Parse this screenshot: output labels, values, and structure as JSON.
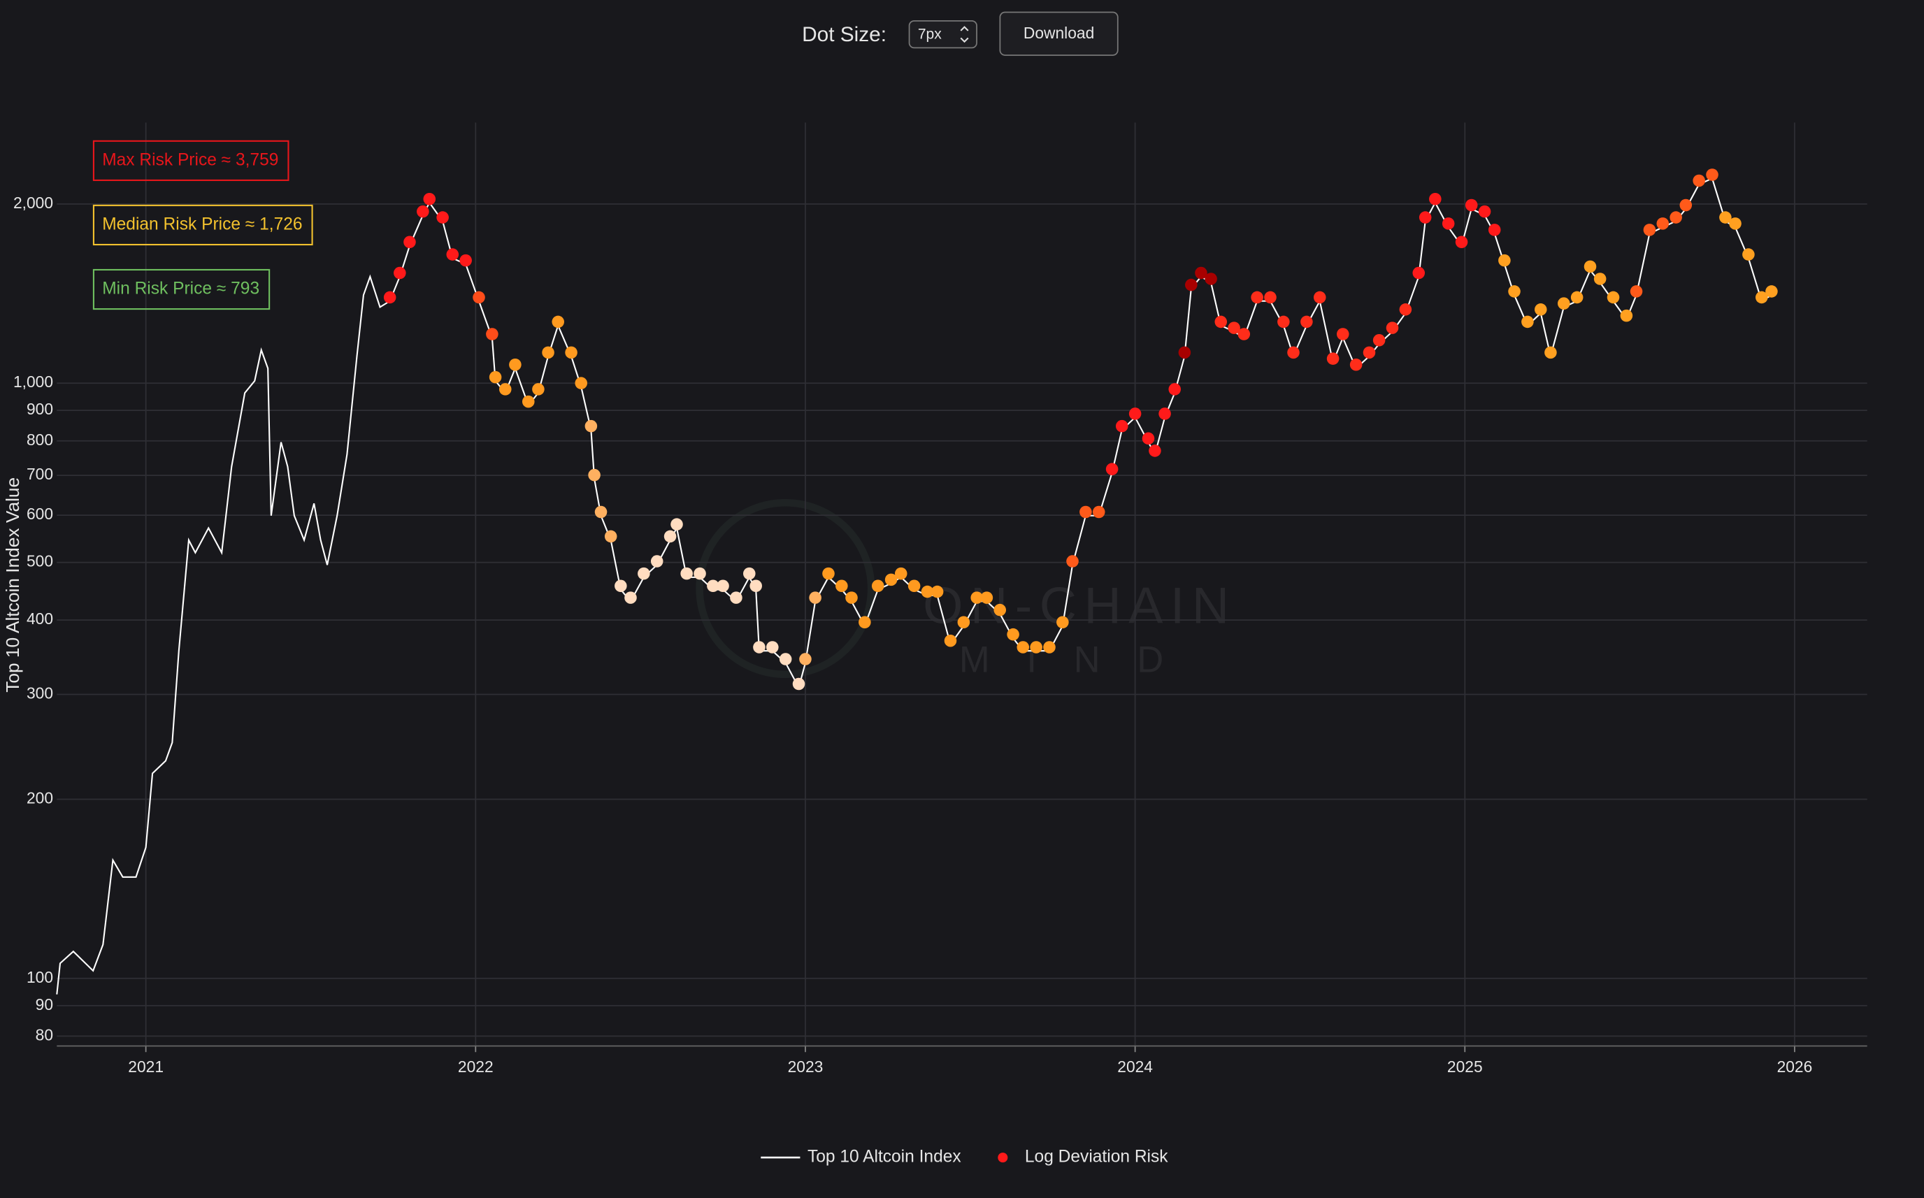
{
  "controls": {
    "dot_size_label": "Dot Size:",
    "dot_size": "7px",
    "download": "Download"
  },
  "chart_data": {
    "type": "line",
    "ylabel": "Top 10 Altcoin Index Value",
    "log_y": true,
    "grid": true,
    "legend": "bottom",
    "watermark": [
      "ON-CHAIN",
      "MIND"
    ],
    "annotations": [
      {
        "text": "Max Risk Price ≈ 3,759",
        "color": "#e8161b"
      },
      {
        "text": "Median Risk Price ≈ 1,726",
        "color": "#f2c12e"
      },
      {
        "text": "Min Risk Price ≈ 793",
        "color": "#6fbf5f"
      }
    ],
    "xlim": [
      2020.73,
      2026.22
    ],
    "xticks": [
      2021,
      2022,
      2023,
      2024,
      2025,
      2026
    ],
    "ylim": [
      77,
      2740
    ],
    "yticks": [
      80,
      90,
      100,
      200,
      300,
      400,
      500,
      600,
      700,
      800,
      900,
      {
        "value": 1000,
        "label": "1,000"
      },
      {
        "value": 2000,
        "label": "2,000"
      }
    ],
    "series": [
      {
        "name": "Top 10 Altcoin Index",
        "type": "line",
        "color": "#ffffff",
        "x": [
          2020.73,
          2020.74,
          2020.78,
          2020.84,
          2020.87,
          2020.9,
          2020.93,
          2020.97,
          2021.0,
          2021.02,
          2021.06,
          2021.08,
          2021.1,
          2021.12,
          2021.13,
          2021.15,
          2021.19,
          2021.23,
          2021.26,
          2021.3,
          2021.33,
          2021.35,
          2021.37,
          2021.38,
          2021.41,
          2021.43,
          2021.45,
          2021.48,
          2021.51,
          2021.53,
          2021.55,
          2021.58,
          2021.61,
          2021.64,
          2021.66,
          2021.68,
          2021.71,
          2021.74,
          2021.77,
          2021.8,
          2021.84,
          2021.86,
          2021.9,
          2021.93,
          2021.97,
          2022.01,
          2022.05,
          2022.06,
          2022.09,
          2022.12,
          2022.16,
          2022.19,
          2022.22,
          2022.25,
          2022.29,
          2022.32,
          2022.35,
          2022.36,
          2022.38,
          2022.41,
          2022.44,
          2022.47,
          2022.51,
          2022.55,
          2022.59,
          2022.61,
          2022.64,
          2022.68,
          2022.72,
          2022.75,
          2022.79,
          2022.83,
          2022.85,
          2022.86,
          2022.9,
          2022.94,
          2022.98,
          2023.0,
          2023.03,
          2023.07,
          2023.11,
          2023.14,
          2023.18,
          2023.22,
          2023.26,
          2023.29,
          2023.33,
          2023.37,
          2023.4,
          2023.44,
          2023.48,
          2023.52,
          2023.55,
          2023.59,
          2023.63,
          2023.66,
          2023.7,
          2023.74,
          2023.78,
          2023.81,
          2023.85,
          2023.89,
          2023.93,
          2023.96,
          2024.0,
          2024.04,
          2024.06,
          2024.09,
          2024.12,
          2024.15,
          2024.17,
          2024.2,
          2024.23,
          2024.26,
          2024.3,
          2024.33,
          2024.37,
          2024.41,
          2024.45,
          2024.48,
          2024.52,
          2024.56,
          2024.6,
          2024.63,
          2024.67,
          2024.71,
          2024.74,
          2024.78,
          2024.82,
          2024.86,
          2024.88,
          2024.91,
          2024.95,
          2024.99,
          2025.02,
          2025.06,
          2025.09,
          2025.12,
          2025.15,
          2025.19,
          2025.23,
          2025.26,
          2025.3,
          2025.34,
          2025.38,
          2025.41,
          2025.45,
          2025.49,
          2025.52,
          2025.56,
          2025.6,
          2025.64,
          2025.67,
          2025.71,
          2025.75,
          2025.79,
          2025.82,
          2025.86,
          2025.9,
          2025.93
        ],
        "values": [
          94,
          106,
          111,
          103,
          114,
          158,
          148,
          148,
          166,
          221,
          232,
          249,
          355,
          472,
          545,
          519,
          571,
          519,
          724,
          963,
          1009,
          1137,
          1059,
          599,
          796,
          724,
          599,
          545,
          628,
          545,
          495,
          599,
          759,
          1110,
          1406,
          1510,
          1342,
          1374,
          1510,
          1702,
          1915,
          2010,
          1872,
          1622,
          1585,
          1374,
          1192,
          1009,
          963,
          1059,
          918,
          963,
          1110,
          1250,
          1110,
          986,
          835,
          691,
          599,
          545,
          450,
          430,
          472,
          495,
          545,
          571,
          472,
          472,
          450,
          450,
          430,
          472,
          450,
          355,
          355,
          339,
          308,
          339,
          430,
          472,
          450,
          430,
          391,
          450,
          461,
          472,
          450,
          440,
          440,
          364,
          391,
          430,
          430,
          410,
          373,
          355,
          355,
          355,
          391,
          495,
          599,
          599,
          707,
          835,
          876,
          796,
          759,
          876,
          963,
          1110,
          1442,
          1510,
          1476,
          1250,
          1221,
          1192,
          1374,
          1374,
          1250,
          1110,
          1250,
          1374,
          1084,
          1192,
          1059,
          1110,
          1164,
          1221,
          1311,
          1510,
          1872,
          2010,
          1828,
          1702,
          1963,
          1915,
          1784,
          1585,
          1406,
          1250,
          1311,
          1110,
          1342,
          1374,
          1548,
          1476,
          1374,
          1280,
          1406,
          1784,
          1828,
          1872,
          1963,
          2158,
          2208,
          1872,
          1828,
          1622,
          1374,
          1406
        ]
      },
      {
        "name": "Log Deviation Risk",
        "type": "scatter",
        "color": "#ff1a1a",
        "x": [
          2021.74,
          2021.77,
          2021.8,
          2021.84,
          2021.86,
          2021.9,
          2021.93,
          2021.97,
          2022.01,
          2022.05,
          2022.06,
          2022.09,
          2022.12,
          2022.16,
          2022.19,
          2022.22,
          2022.25,
          2022.29,
          2022.32,
          2022.35,
          2022.36,
          2022.38,
          2022.41,
          2022.44,
          2022.47,
          2022.51,
          2022.55,
          2022.59,
          2022.61,
          2022.64,
          2022.68,
          2022.72,
          2022.75,
          2022.79,
          2022.83,
          2022.85,
          2022.86,
          2022.9,
          2022.94,
          2022.98,
          2023.0,
          2023.03,
          2023.07,
          2023.11,
          2023.14,
          2023.18,
          2023.22,
          2023.26,
          2023.29,
          2023.33,
          2023.37,
          2023.4,
          2023.44,
          2023.48,
          2023.52,
          2023.55,
          2023.59,
          2023.63,
          2023.66,
          2023.7,
          2023.74,
          2023.78,
          2023.81,
          2023.85,
          2023.89,
          2023.93,
          2023.96,
          2024.0,
          2024.04,
          2024.06,
          2024.09,
          2024.12,
          2024.15,
          2024.17,
          2024.2,
          2024.23,
          2024.26,
          2024.3,
          2024.33,
          2024.37,
          2024.41,
          2024.45,
          2024.48,
          2024.52,
          2024.56,
          2024.6,
          2024.63,
          2024.67,
          2024.71,
          2024.74,
          2024.78,
          2024.82,
          2024.86,
          2024.88,
          2024.91,
          2024.95,
          2024.99,
          2025.02,
          2025.06,
          2025.09,
          2025.12,
          2025.15,
          2025.19,
          2025.23,
          2025.26,
          2025.3,
          2025.34,
          2025.38,
          2025.41,
          2025.45,
          2025.49,
          2025.52,
          2025.56,
          2025.6,
          2025.64,
          2025.67,
          2025.71,
          2025.75,
          2025.79,
          2025.82,
          2025.86,
          2025.9,
          2025.93
        ],
        "values": [
          1374,
          1510,
          1702,
          1915,
          2010,
          1872,
          1622,
          1585,
          1374,
          1192,
          1009,
          963,
          1059,
          918,
          963,
          1110,
          1250,
          1110,
          986,
          835,
          691,
          599,
          545,
          450,
          430,
          472,
          495,
          545,
          571,
          472,
          472,
          450,
          450,
          430,
          472,
          450,
          355,
          355,
          339,
          308,
          339,
          430,
          472,
          450,
          430,
          391,
          450,
          461,
          472,
          450,
          440,
          440,
          364,
          391,
          430,
          430,
          410,
          373,
          355,
          355,
          355,
          391,
          495,
          599,
          599,
          707,
          835,
          876,
          796,
          759,
          876,
          963,
          1110,
          1442,
          1510,
          1476,
          1250,
          1221,
          1192,
          1374,
          1374,
          1250,
          1110,
          1250,
          1374,
          1084,
          1192,
          1059,
          1110,
          1164,
          1221,
          1311,
          1510,
          1872,
          2010,
          1828,
          1702,
          1963,
          1915,
          1784,
          1585,
          1406,
          1250,
          1311,
          1110,
          1342,
          1374,
          1548,
          1476,
          1374,
          1280,
          1406,
          1784,
          1828,
          1872,
          1963,
          2158,
          2208,
          1872,
          1828,
          1622,
          1374,
          1406
        ],
        "colors": [
          "#ff1a1a",
          "#ff1a1a",
          "#ff1a1a",
          "#ff1a1a",
          "#ff1a1a",
          "#ff1a1a",
          "#ff1a1a",
          "#ff1a1a",
          "#ff4d1a",
          "#ff4d1a",
          "#ff9a1f",
          "#ff9a1f",
          "#ff9a1f",
          "#ff9a1f",
          "#ff9a1f",
          "#ff9a1f",
          "#ff9a1f",
          "#ff9a1f",
          "#ff9a1f",
          "#ffb060",
          "#ffb060",
          "#ffb060",
          "#ffb060",
          "#ffdcc0",
          "#ffdcc0",
          "#ffdcc0",
          "#ffdcc0",
          "#ffdcc0",
          "#ffdcc0",
          "#ffdcc0",
          "#ffdcc0",
          "#ffdcc0",
          "#ffdcc0",
          "#ffdcc0",
          "#ffdcc0",
          "#ffdcc0",
          "#ffdcc0",
          "#ffdcc0",
          "#ffdcc0",
          "#ffdcc0",
          "#ffb060",
          "#ffb060",
          "#ff9a1f",
          "#ff9a1f",
          "#ff9a1f",
          "#ff9a1f",
          "#ff9a1f",
          "#ff9a1f",
          "#ff9a1f",
          "#ff9a1f",
          "#ff9a1f",
          "#ff9a1f",
          "#ff9a1f",
          "#ff9a1f",
          "#ff9a1f",
          "#ff9a1f",
          "#ff9a1f",
          "#ff9a1f",
          "#ff9a1f",
          "#ff9a1f",
          "#ff9a1f",
          "#ff9a1f",
          "#ff5a1a",
          "#ff5a1a",
          "#ff5a1a",
          "#ff1a1a",
          "#ff1a1a",
          "#ff1a1a",
          "#ff1a1a",
          "#ff1a1a",
          "#ff1a1a",
          "#ff1a1a",
          "#a80000",
          "#a80000",
          "#a80000",
          "#a80000",
          "#ff2d1a",
          "#ff2d1a",
          "#ff2d1a",
          "#ff2d1a",
          "#ff2d1a",
          "#ff2d1a",
          "#ff2d1a",
          "#ff2d1a",
          "#ff2d1a",
          "#ff2d1a",
          "#ff2d1a",
          "#ff2d1a",
          "#ff2d1a",
          "#ff2d1a",
          "#ff2d1a",
          "#ff2d1a",
          "#ff1a1a",
          "#ff1a1a",
          "#ff1a1a",
          "#ff1a1a",
          "#ff1a1a",
          "#ff1a1a",
          "#ff1a1a",
          "#ff1a1a",
          "#ffa020",
          "#ffa020",
          "#ffa020",
          "#ffa020",
          "#ffa020",
          "#ffa020",
          "#ffa020",
          "#ffa020",
          "#ffa020",
          "#ffa020",
          "#ffa020",
          "#ff5a1a",
          "#ff5a1a",
          "#ff5a1a",
          "#ff5a1a",
          "#ff5a1a",
          "#ff5a1a",
          "#ff5a1a",
          "#ffa020",
          "#ffa020",
          "#ffa020",
          "#ffa020",
          "#ffa020"
        ]
      }
    ]
  }
}
